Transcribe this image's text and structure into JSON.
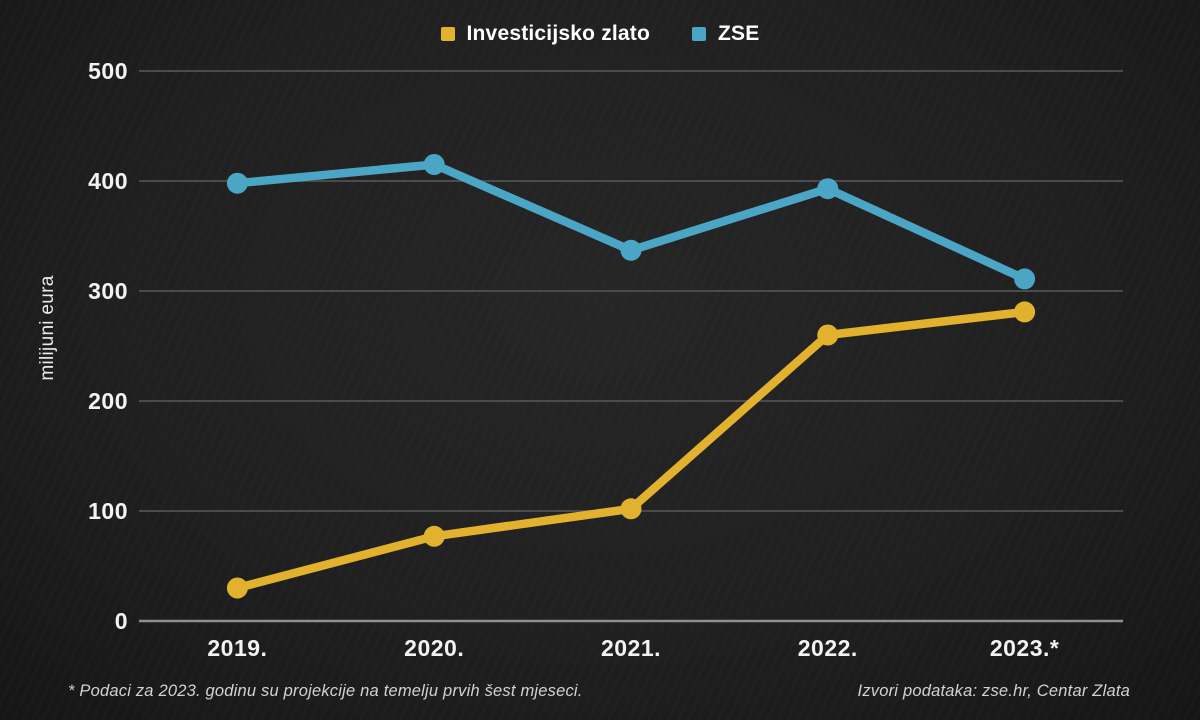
{
  "chart_data": {
    "type": "line",
    "title": "",
    "ylabel": "milijuni eura",
    "xlabel": "",
    "categories": [
      "2019.",
      "2020.",
      "2021.",
      "2022.",
      "2023.*"
    ],
    "series": [
      {
        "name": "Investicijsko zlato",
        "color": "#E2B12E",
        "values": [
          30,
          77,
          102,
          260,
          281
        ]
      },
      {
        "name": "ZSE",
        "color": "#4BA6C5",
        "values": [
          398,
          415,
          337,
          393,
          311
        ]
      }
    ],
    "ylim": [
      0,
      500
    ],
    "yticks": [
      0,
      100,
      200,
      300,
      400,
      500
    ],
    "grid": true,
    "legend_position": "top",
    "gridline_color": "#4b4b4b",
    "axis_line_color": "#8f8f8f",
    "background_color": "#202020"
  },
  "footnotes": {
    "left": "* Podaci za 2023. godinu su projekcije na temelju prvih šest mjeseci.",
    "right": "Izvori podataka: zse.hr, Centar Zlata"
  }
}
